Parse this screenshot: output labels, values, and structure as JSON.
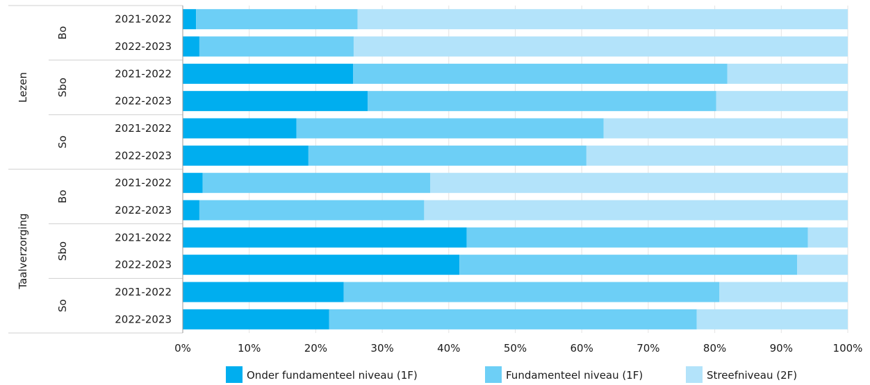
{
  "chart_data": {
    "type": "bar",
    "orientation": "horizontal",
    "stacked": true,
    "colors": [
      "#00aeef",
      "#6dcff6",
      "#b3e3fa"
    ],
    "grid": true,
    "legend_position": "bottom",
    "xlim": [
      0,
      100
    ],
    "x_ticks": [
      "0%",
      "10%",
      "20%",
      "30%",
      "40%",
      "50%",
      "60%",
      "70%",
      "80%",
      "90%",
      "100%"
    ],
    "groups": [
      {
        "label": "Lezen",
        "subgroups": [
          {
            "label": "Bo",
            "rows": [
              {
                "label": "2021-2022",
                "values": [
                  2,
                  24.3,
                  73.7
                ]
              },
              {
                "label": "2022-2023",
                "values": [
                  2.5,
                  23.2,
                  74.3
                ]
              }
            ]
          },
          {
            "label": "Sbo",
            "rows": [
              {
                "label": "2021-2022",
                "values": [
                  25.6,
                  56.3,
                  18.1
                ]
              },
              {
                "label": "2022-2023",
                "values": [
                  27.8,
                  52.4,
                  19.8
                ]
              }
            ]
          },
          {
            "label": "So",
            "rows": [
              {
                "label": "2021-2022",
                "values": [
                  17.1,
                  46.2,
                  36.7
                ]
              },
              {
                "label": "2022-2023",
                "values": [
                  18.9,
                  41.8,
                  39.3
                ]
              }
            ]
          }
        ]
      },
      {
        "label": "Taalverzorging",
        "subgroups": [
          {
            "label": "Bo",
            "rows": [
              {
                "label": "2021-2022",
                "values": [
                  3,
                  34.2,
                  62.8
                ]
              },
              {
                "label": "2022-2023",
                "values": [
                  2.5,
                  33.8,
                  63.7
                ]
              }
            ]
          },
          {
            "label": "Sbo",
            "rows": [
              {
                "label": "2021-2022",
                "values": [
                  42.7,
                  51.3,
                  6
                ]
              },
              {
                "label": "2022-2023",
                "values": [
                  41.6,
                  50.8,
                  7.6
                ]
              }
            ]
          },
          {
            "label": "So",
            "rows": [
              {
                "label": "2021-2022",
                "values": [
                  24.2,
                  56.5,
                  19.3
                ]
              },
              {
                "label": "2022-2023",
                "values": [
                  22,
                  55.3,
                  22.7
                ]
              }
            ]
          }
        ]
      }
    ],
    "series": [
      {
        "name": "Onder fundamenteel niveau (1F)"
      },
      {
        "name": "Fundamenteel niveau (1F)"
      },
      {
        "name": "Streefniveau (2F)"
      }
    ]
  }
}
